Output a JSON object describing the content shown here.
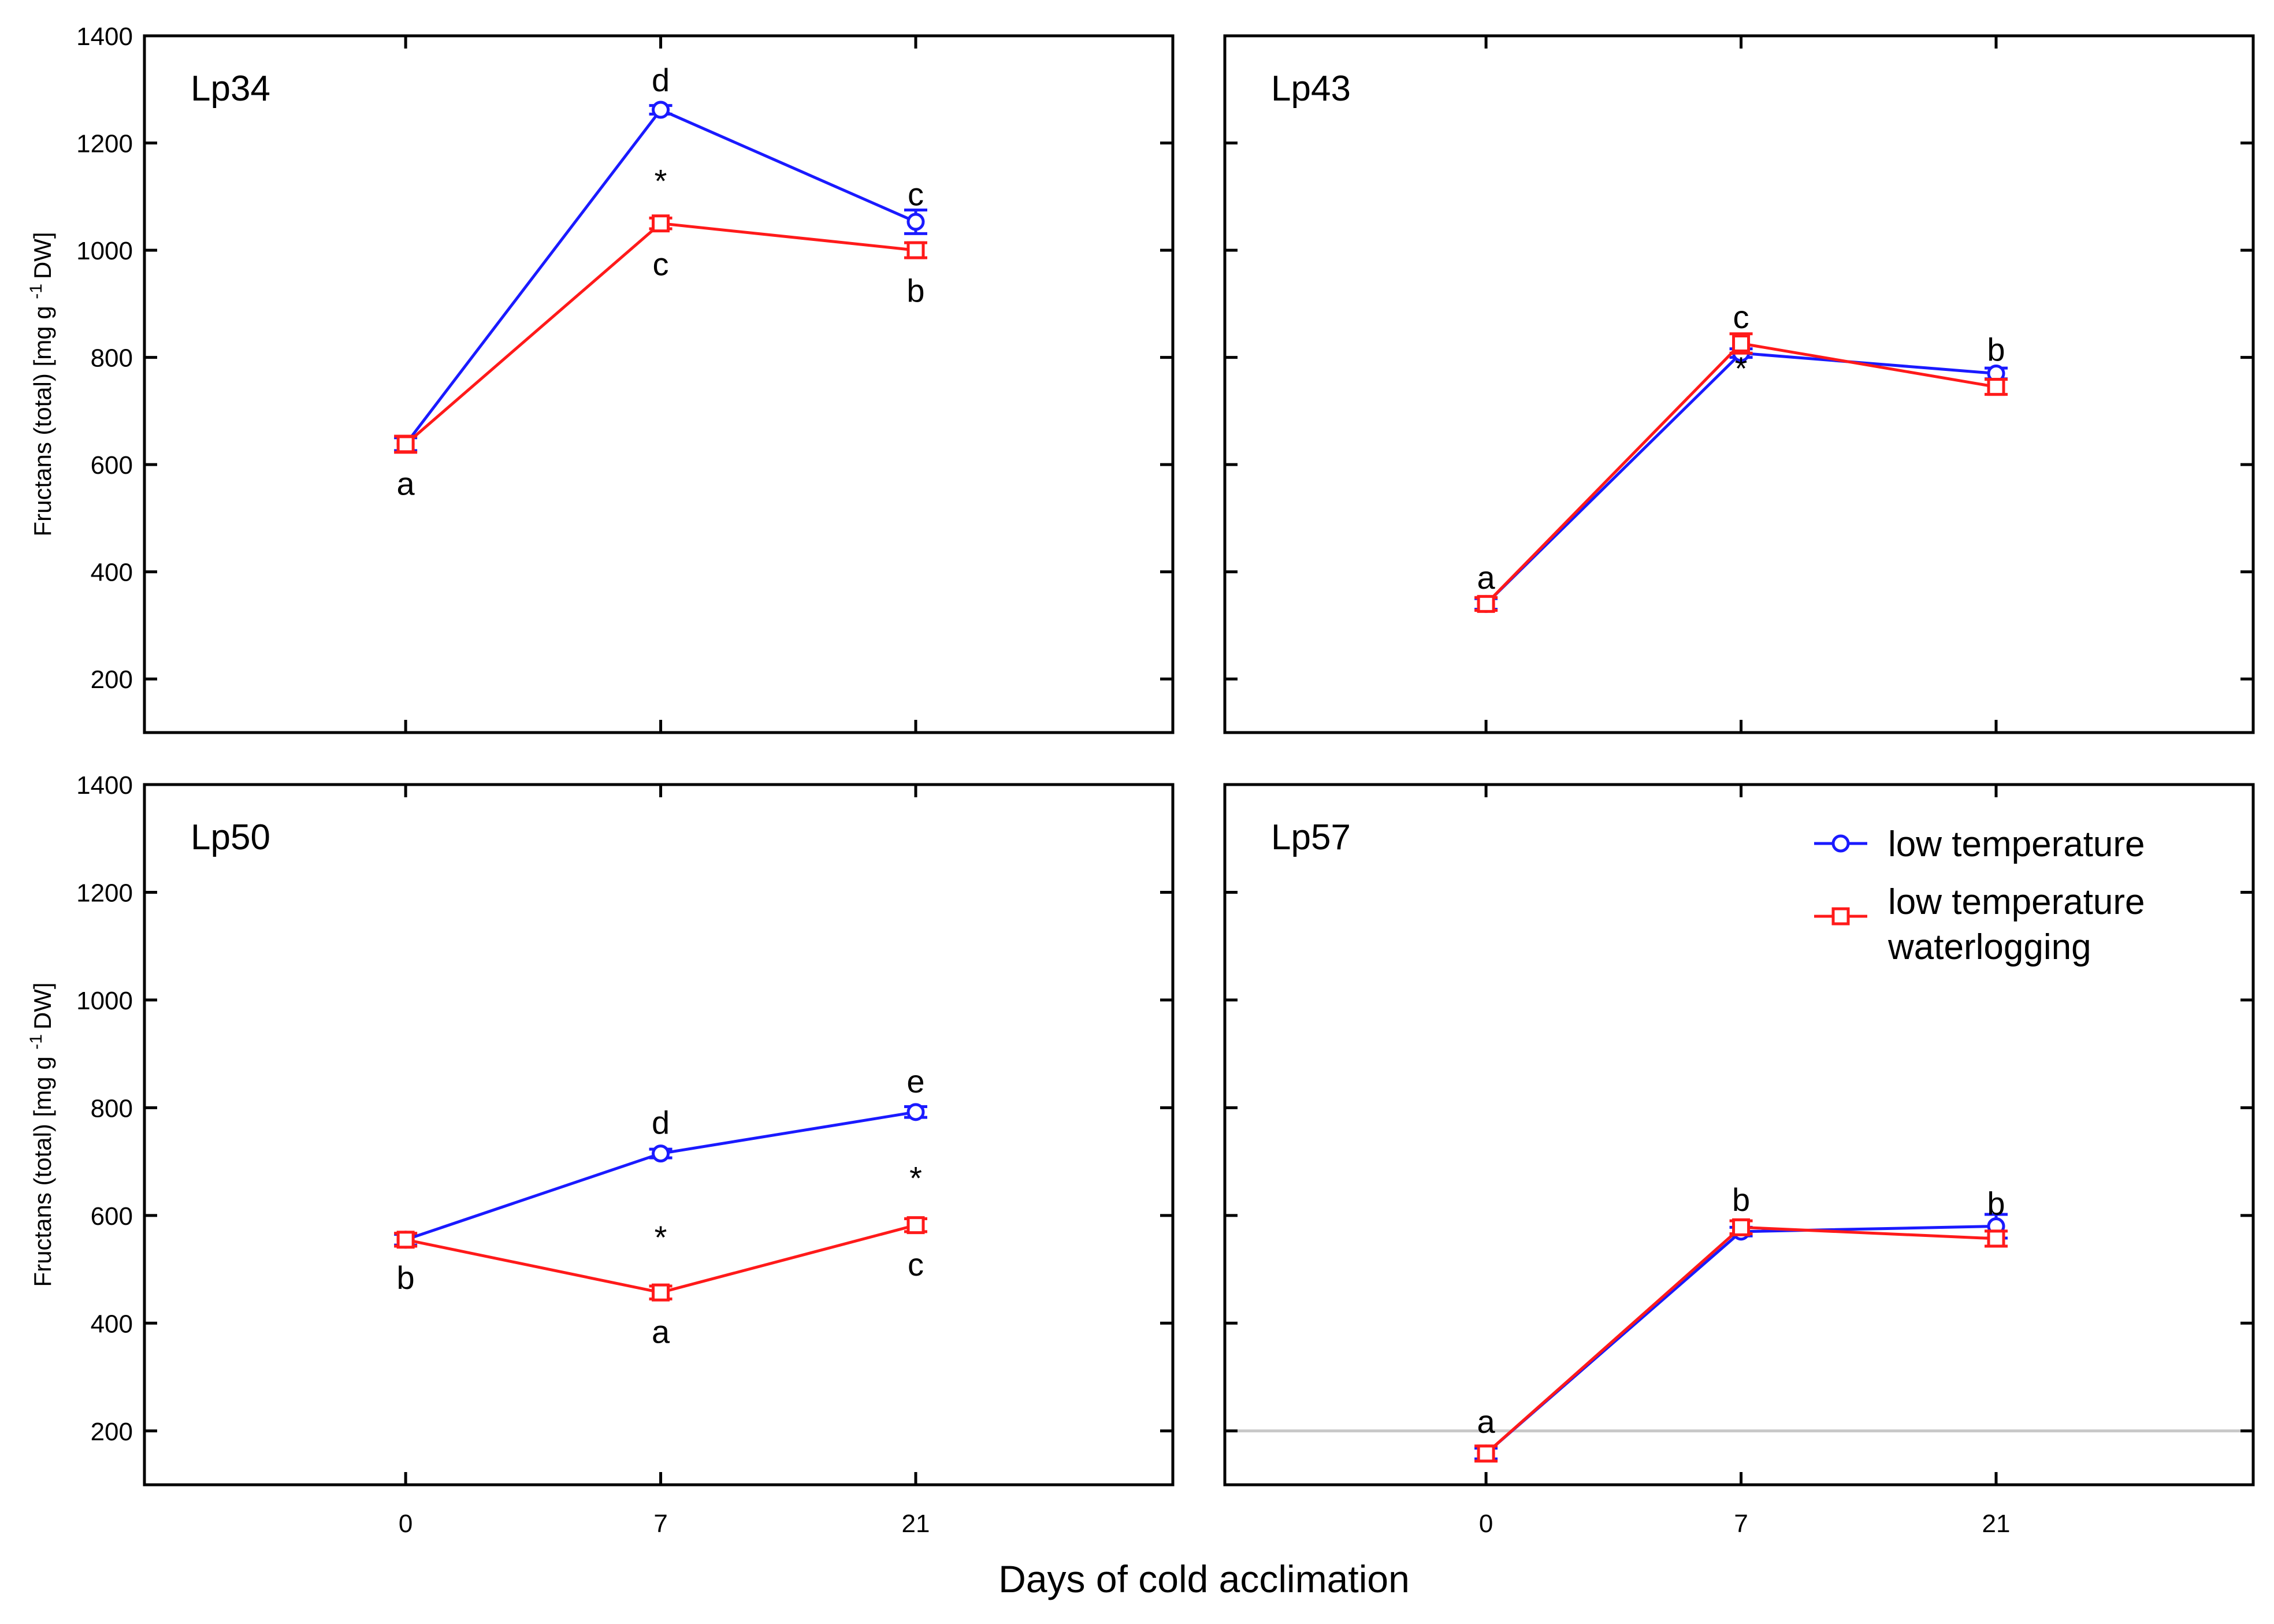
{
  "chart_data": {
    "type": "line",
    "xlabel": "Days of cold acclimation",
    "ylabel": "Fructans (total) [mg g -1 DW]",
    "ylabel_parts": {
      "main": "Fructans (total) [mg g",
      "sup": "-1",
      "unit": "DW]"
    },
    "x_ticks": [
      "0",
      "7",
      "21"
    ],
    "y_ticks": [
      "200",
      "400",
      "600",
      "800",
      "1000",
      "1200",
      "1400"
    ],
    "ylim": [
      100,
      1400
    ],
    "legend": {
      "placement": "top-right",
      "entries": [
        {
          "name": "low temperature",
          "lines": [
            "low temperature"
          ],
          "marker": "circle",
          "color": "#1a1aff"
        },
        {
          "name": "low temperature waterlogging",
          "lines": [
            "low temperature",
            "waterlogging"
          ],
          "marker": "square",
          "color": "#ff1a1a"
        }
      ]
    },
    "colors": {
      "low_temperature": "#1a1aff",
      "waterlogging": "#ff1a1a",
      "axis": "#000000",
      "reference_line": "#c8c8c8"
    },
    "panels": [
      {
        "title": "Lp34",
        "series": [
          {
            "name": "low temperature",
            "x": [
              "0",
              "7",
              "21"
            ],
            "values": [
              638,
              1262,
              1053
            ],
            "error": [
              12,
              8,
              22
            ]
          },
          {
            "name": "low temperature waterlogging",
            "x": [
              "0",
              "7",
              "21"
            ],
            "values": [
              638,
              1050,
              1000
            ],
            "error": [
              15,
              10,
              14
            ]
          }
        ],
        "annotations": [
          {
            "text": "d",
            "x": "7",
            "y": 1318
          },
          {
            "text": "*",
            "x": "7",
            "y": 1130
          },
          {
            "text": "c",
            "x": "7",
            "y": 975
          },
          {
            "text": "a",
            "x": "0",
            "y": 565
          },
          {
            "text": "c",
            "x": "21",
            "y": 1105
          },
          {
            "text": "b",
            "x": "21",
            "y": 925
          }
        ]
      },
      {
        "title": "Lp43",
        "series": [
          {
            "name": "low temperature",
            "x": [
              "0",
              "7",
              "21"
            ],
            "values": [
              340,
              808,
              770
            ],
            "error": [
              10,
              8,
              10
            ]
          },
          {
            "name": "low temperature waterlogging",
            "x": [
              "0",
              "7",
              "21"
            ],
            "values": [
              340,
              826,
              745
            ],
            "error": [
              12,
              18,
              14
            ]
          }
        ],
        "annotations": [
          {
            "text": "c",
            "x": "7",
            "y": 876
          },
          {
            "text": "*",
            "x": "7",
            "y": 780
          },
          {
            "text": "a",
            "x": "0",
            "y": 390
          },
          {
            "text": "b",
            "x": "21",
            "y": 815
          }
        ]
      },
      {
        "title": "Lp50",
        "series": [
          {
            "name": "low temperature",
            "x": [
              "0",
              "7",
              "21"
            ],
            "values": [
              555,
              715,
              792
            ],
            "error": [
              10,
              8,
              10
            ]
          },
          {
            "name": "low temperature waterlogging",
            "x": [
              "0",
              "7",
              "21"
            ],
            "values": [
              555,
              457,
              582
            ],
            "error": [
              12,
              12,
              12
            ]
          }
        ],
        "annotations": [
          {
            "text": "d",
            "x": "7",
            "y": 773
          },
          {
            "text": "*",
            "x": "7",
            "y": 560
          },
          {
            "text": "a",
            "x": "7",
            "y": 385
          },
          {
            "text": "b",
            "x": "0",
            "y": 485
          },
          {
            "text": "e",
            "x": "21",
            "y": 850
          },
          {
            "text": "*",
            "x": "21",
            "y": 670
          },
          {
            "text": "c",
            "x": "21",
            "y": 510
          }
        ]
      },
      {
        "title": "Lp57",
        "reference_line": 200,
        "series": [
          {
            "name": "low temperature",
            "x": [
              "0",
              "7",
              "21"
            ],
            "values": [
              158,
              570,
              580
            ],
            "error": [
              10,
              8,
              22
            ]
          },
          {
            "name": "low temperature waterlogging",
            "x": [
              "0",
              "7",
              "21"
            ],
            "values": [
              158,
              578,
              557
            ],
            "error": [
              14,
              12,
              14
            ]
          }
        ],
        "annotations": [
          {
            "text": "a",
            "x": "0",
            "y": 218
          },
          {
            "text": "b",
            "x": "7",
            "y": 630
          },
          {
            "text": "b",
            "x": "21",
            "y": 623
          }
        ]
      }
    ]
  }
}
